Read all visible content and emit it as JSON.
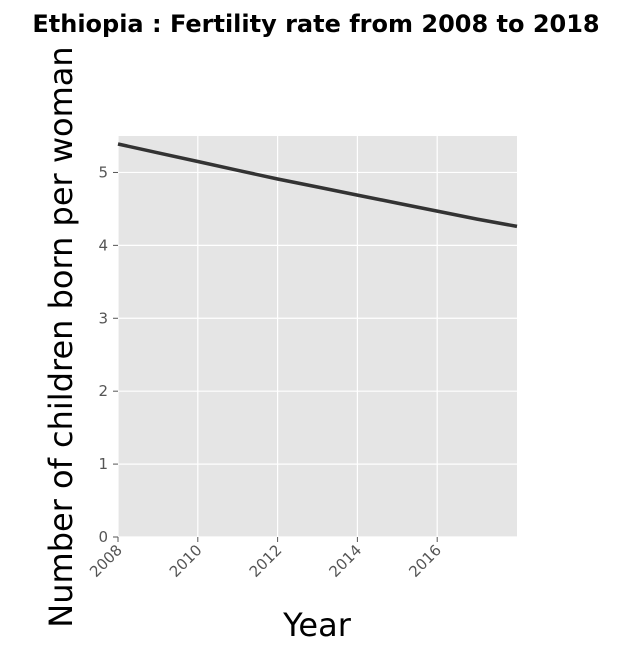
{
  "chart_data": {
    "type": "line",
    "title": "Ethiopia : Fertility rate from 2008 to 2018",
    "xlabel": "Year",
    "ylabel": "Number of children born per woman",
    "x_ticks": [
      "2008",
      "2010",
      "2012",
      "2014",
      "2016"
    ],
    "y_ticks": [
      "0",
      "1",
      "2",
      "3",
      "4",
      "5"
    ],
    "xlim": [
      2008,
      2018
    ],
    "ylim": [
      0,
      5.5
    ],
    "grid": true,
    "series": [
      {
        "x": [
          2008,
          2009,
          2010,
          2011,
          2012,
          2013,
          2014,
          2015,
          2016,
          2017,
          2018
        ],
        "y": [
          5.39,
          5.27,
          5.15,
          5.03,
          4.91,
          4.8,
          4.69,
          4.58,
          4.47,
          4.36,
          4.26
        ]
      }
    ],
    "colors": {
      "panel": "#e5e5e5",
      "grid": "#ffffff",
      "line": "#333333",
      "tick": "#555555"
    }
  }
}
